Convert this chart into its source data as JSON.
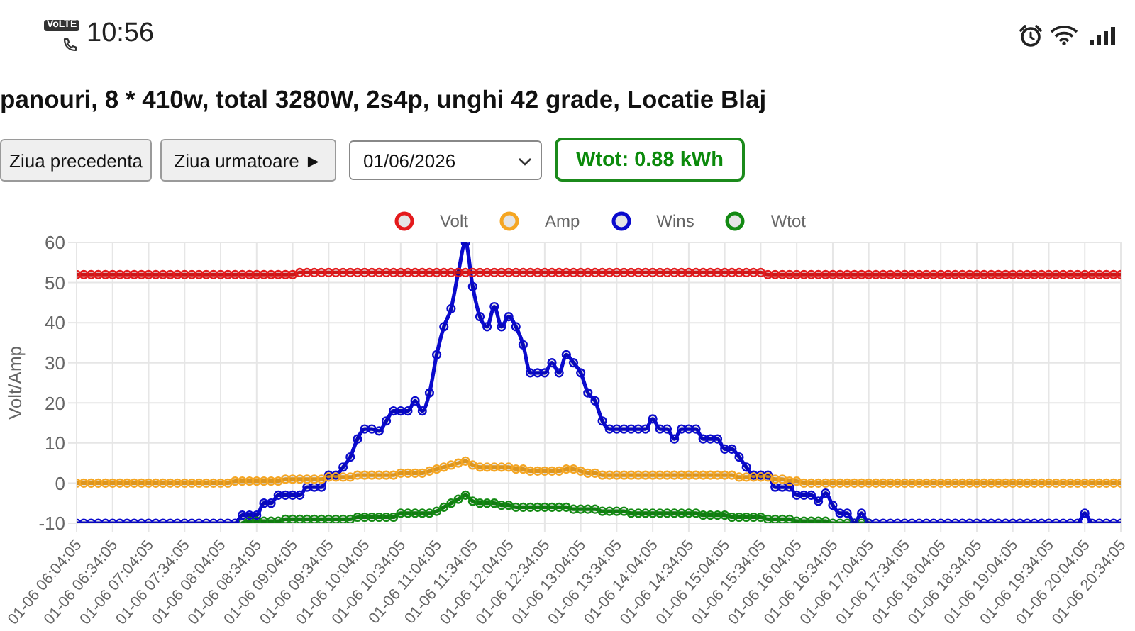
{
  "chart_data": {
    "type": "line",
    "title": "panouri, 8 * 410w, total 3280W, 2s4p, unghi 42 grade, Locatie Blaj",
    "ylabel": "Volt/Amp",
    "annotations": [
      "10:56",
      "VoLTE",
      "Ziua precedenta",
      "Ziua urmatoare ►",
      "01/06/2026",
      "Wtot: 0.88 kWh"
    ],
    "categories": [
      "01-06 06:04:05",
      null,
      null,
      null,
      null,
      "01-06 06:34:05",
      null,
      null,
      null,
      null,
      "01-06 07:04:05",
      null,
      null,
      null,
      null,
      "01-06 07:34:05",
      null,
      null,
      null,
      null,
      "01-06 08:04:05",
      null,
      null,
      null,
      null,
      "01-06 08:34:05",
      null,
      null,
      null,
      null,
      "01-06 09:04:05",
      null,
      null,
      null,
      null,
      "01-06 09:34:05",
      null,
      null,
      null,
      null,
      "01-06 10:04:05",
      null,
      null,
      null,
      null,
      "01-06 10:34:05",
      null,
      null,
      null,
      null,
      "01-06 11:04:05",
      null,
      null,
      null,
      null,
      "01-06 11:34:05",
      null,
      null,
      null,
      null,
      "01-06 12:04:05",
      null,
      null,
      null,
      null,
      "01-06 12:34:05",
      null,
      null,
      null,
      null,
      "01-06 13:04:05",
      null,
      null,
      null,
      null,
      "01-06 13:34:05",
      null,
      null,
      null,
      null,
      "01-06 14:04:05",
      null,
      null,
      null,
      null,
      "01-06 14:34:05",
      null,
      null,
      null,
      null,
      "01-06 15:04:05",
      null,
      null,
      null,
      null,
      "01-06 15:34:05",
      null,
      null,
      null,
      null,
      "01-06 16:04:05",
      null,
      null,
      null,
      null,
      "01-06 16:34:05",
      null,
      null,
      null,
      null,
      "01-06 17:04:05",
      null,
      null,
      null,
      null,
      "01-06 17:34:05",
      null,
      null,
      null,
      null,
      "01-06 18:04:05",
      null,
      null,
      null,
      null,
      "01-06 18:34:05",
      null,
      null,
      null,
      null,
      "01-06 19:04:05",
      null,
      null,
      null,
      null,
      "01-06 19:34:05",
      null,
      null,
      null,
      null,
      "01-06 20:04:05",
      null,
      null,
      null,
      null,
      "01-06 20:34:05"
    ],
    "series": [
      {
        "name": "Volt",
        "color": "#e41a1c",
        "values": [
          52,
          52,
          52,
          52,
          52,
          52,
          52,
          52,
          52,
          52,
          52,
          52,
          52,
          52,
          52,
          52,
          52,
          52,
          52,
          52,
          52,
          52,
          52,
          52,
          52,
          52,
          52,
          52,
          52,
          52,
          52,
          52.5,
          52.5,
          52.5,
          52.5,
          52.5,
          52.5,
          52.5,
          52.5,
          52.5,
          52.5,
          52.5,
          52.5,
          52.5,
          52.5,
          52.5,
          52.5,
          52.5,
          52.5,
          52.5,
          52.5,
          52.5,
          52.5,
          52.5,
          52.5,
          52.5,
          52.5,
          52.5,
          52.5,
          52.5,
          52.5,
          52.5,
          52.5,
          52.5,
          52.5,
          52.5,
          52.5,
          52.5,
          52.5,
          52.5,
          52.5,
          52.5,
          52.5,
          52.5,
          52.5,
          52.5,
          52.5,
          52.5,
          52.5,
          52.5,
          52.5,
          52.5,
          52.5,
          52.5,
          52.5,
          52.5,
          52.5,
          52.5,
          52.5,
          52.5,
          52.5,
          52.5,
          52.5,
          52.5,
          52.5,
          52.5,
          52,
          52,
          52,
          52,
          52,
          52,
          52,
          52,
          52,
          52,
          52,
          52,
          52,
          52,
          52,
          52,
          52,
          52,
          52,
          52,
          52,
          52,
          52,
          52,
          52,
          52,
          52,
          52,
          52,
          52,
          52,
          52,
          52,
          52,
          52,
          52,
          52,
          52,
          52,
          52,
          52,
          52,
          52,
          52,
          52,
          52,
          52,
          52,
          52,
          52
        ]
      },
      {
        "name": "Amp",
        "color": "#f5a623",
        "values": [
          0,
          0,
          0,
          0,
          0,
          0,
          0,
          0,
          0,
          0,
          0,
          0,
          0,
          0,
          0,
          0,
          0,
          0,
          0,
          0,
          0,
          0,
          0.5,
          0.5,
          0.5,
          0.5,
          0.5,
          0.5,
          0.5,
          1,
          1,
          1,
          1,
          1,
          1,
          1.5,
          1.5,
          1.5,
          1.5,
          2,
          2,
          2,
          2,
          2,
          2,
          2.5,
          2.5,
          2.5,
          2.5,
          3,
          3.5,
          4,
          4.5,
          5,
          5.5,
          4.5,
          4,
          4,
          4,
          4,
          4,
          3.5,
          3.5,
          3,
          3,
          3,
          3,
          3,
          3.5,
          3.5,
          3,
          2.5,
          2.5,
          2,
          2,
          2,
          2,
          2,
          2,
          2,
          2,
          2,
          2,
          2,
          2,
          2,
          2,
          2,
          2,
          2,
          2,
          2,
          1.5,
          1.5,
          1.5,
          1.5,
          1.5,
          1,
          1,
          0.5,
          0.5,
          0,
          0,
          0,
          0,
          0,
          0,
          0,
          0,
          0,
          0,
          0,
          0,
          0,
          0,
          0,
          0,
          0,
          0,
          0,
          0,
          0,
          0,
          0,
          0,
          0,
          0,
          0,
          0,
          0,
          0,
          0,
          0,
          0,
          0,
          0,
          0,
          0,
          0,
          0,
          0,
          0,
          0,
          0,
          0,
          0
        ]
      },
      {
        "name": "Wins",
        "color": "#0a0acd",
        "values": [
          -10,
          -10,
          -10,
          -10,
          -10,
          -10,
          -10,
          -10,
          -10,
          -10,
          -10,
          -10,
          -10,
          -10,
          -10,
          -10,
          -10,
          -10,
          -10,
          -10,
          -10,
          -10,
          -10,
          -8,
          -8,
          -8,
          -5,
          -5,
          -3,
          -3,
          -3,
          -3,
          -1,
          -1,
          -1,
          2,
          2,
          4,
          6.5,
          11,
          13.5,
          13.5,
          13,
          15.5,
          18,
          18,
          18,
          20.5,
          18,
          22.5,
          32,
          39,
          43.5,
          52.5,
          60,
          49,
          41.5,
          39,
          44,
          39,
          41.5,
          39,
          34.5,
          27.5,
          27.5,
          27.5,
          30,
          27.5,
          32,
          30,
          27.5,
          22.5,
          20.5,
          15.5,
          13.5,
          13.5,
          13.5,
          13.5,
          13.5,
          13.5,
          16,
          13.5,
          13.5,
          11,
          13.5,
          13.5,
          13.5,
          11,
          11,
          11,
          8.5,
          8.5,
          6.5,
          4,
          2,
          2,
          2,
          -1,
          -1,
          -1,
          -3,
          -3,
          -3,
          -4.5,
          -2.5,
          -5.5,
          -7.5,
          -7.5,
          -10,
          -7.5,
          -10,
          -10,
          -10,
          -10,
          -10,
          -10,
          -10,
          -10,
          -10,
          -10,
          -10,
          -10,
          -10,
          -10,
          -10,
          -10,
          -10,
          -10,
          -10,
          -10,
          -10,
          -10,
          -10,
          -10,
          -10,
          -10,
          -10,
          -10,
          -10,
          -10,
          -7.5,
          -10,
          -10,
          -10,
          -10,
          -10
        ]
      },
      {
        "name": "Wtot",
        "color": "#138a13",
        "values": [
          null,
          null,
          null,
          null,
          null,
          null,
          null,
          null,
          null,
          null,
          null,
          null,
          null,
          null,
          null,
          null,
          null,
          null,
          null,
          null,
          null,
          null,
          null,
          -10,
          -9.5,
          -9.5,
          -9.5,
          -9.5,
          -9.5,
          -9,
          -9,
          -9,
          -9,
          -9,
          -9,
          -9,
          -9,
          -9,
          -9,
          -8.5,
          -8.5,
          -8.5,
          -8.5,
          -8.5,
          -8.5,
          -7.5,
          -7.5,
          -7.5,
          -7.5,
          -7.5,
          -7,
          -6,
          -5,
          -4,
          -3,
          -4.5,
          -5,
          -5,
          -5,
          -5.5,
          -5.5,
          -6,
          -6,
          -6,
          -6,
          -6,
          -6,
          -6,
          -6,
          -6.5,
          -6.5,
          -6.5,
          -6.5,
          -7,
          -7,
          -7,
          -7,
          -7.5,
          -7.5,
          -7.5,
          -7.5,
          -7.5,
          -7.5,
          -7.5,
          -7.5,
          -7.5,
          -7.5,
          -8,
          -8,
          -8,
          -8,
          -8.5,
          -8.5,
          -8.5,
          -8.5,
          -8.5,
          -9,
          -9,
          -9,
          -9,
          -9.5,
          -9.5,
          -9.5,
          -9.5,
          -9.5,
          -10,
          -10,
          -10,
          -10,
          -10,
          -10,
          null,
          null,
          null,
          null,
          null,
          null,
          null,
          null,
          null,
          null,
          null,
          null,
          null,
          null,
          null,
          null,
          null,
          null,
          null,
          null,
          null,
          null,
          null,
          null,
          null,
          null,
          null,
          null,
          null,
          null,
          null,
          null,
          null,
          null,
          null
        ]
      }
    ],
    "ylim": [
      -10,
      60
    ],
    "yticks": [
      -10,
      0,
      10,
      20,
      30,
      40,
      50,
      60
    ],
    "grid": true,
    "legend": "top",
    "marker": "circle",
    "line_style": "solid"
  }
}
